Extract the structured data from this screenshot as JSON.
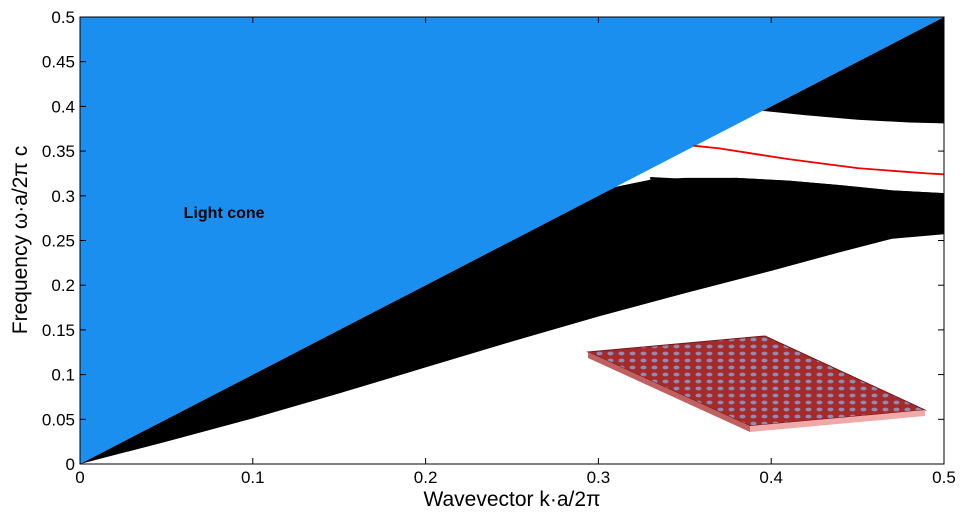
{
  "chart_data": {
    "type": "area",
    "xlabel": "Wavevector k·a/2π",
    "ylabel": "Frequency ω·a/2π c",
    "xlim": [
      0,
      0.5
    ],
    "ylim": [
      0,
      0.5
    ],
    "grid": false,
    "xticks": [
      "0",
      "0.1",
      "0.2",
      "0.3",
      "0.4",
      "0.5"
    ],
    "yticks": [
      "0",
      "0.05",
      "0.1",
      "0.15",
      "0.2",
      "0.25",
      "0.3",
      "0.35",
      "0.4",
      "0.45",
      "0.5"
    ],
    "colors": {
      "light_cone": "#1a8fef",
      "bands": "#000000",
      "guided_mode": "#ee0000"
    },
    "annotations": [
      {
        "text": "Light cone",
        "x": 0.06,
        "y": 0.275
      }
    ],
    "light_cone": {
      "x": [
        0,
        0.5
      ],
      "y": [
        0,
        0.5
      ]
    },
    "lower_band": {
      "top": {
        "x": [
          0,
          0.1,
          0.2,
          0.3,
          0.31,
          0.33,
          0.35,
          0.38,
          0.41,
          0.44,
          0.47,
          0.5
        ],
        "y": [
          0,
          0.1,
          0.2,
          0.3,
          0.31,
          0.318,
          0.32,
          0.32,
          0.317,
          0.312,
          0.306,
          0.303
        ]
      },
      "bottom": {
        "x": [
          0,
          0.05,
          0.1,
          0.15,
          0.2,
          0.25,
          0.3,
          0.35,
          0.4,
          0.44,
          0.47,
          0.5
        ],
        "y": [
          0,
          0.025,
          0.051,
          0.079,
          0.108,
          0.137,
          0.165,
          0.191,
          0.216,
          0.237,
          0.252,
          0.257
        ]
      }
    },
    "middle_band_edge": {
      "x": [
        0.33,
        0.36,
        0.39,
        0.42,
        0.45,
        0.48,
        0.5
      ],
      "y": [
        0.321,
        0.318,
        0.311,
        0.3,
        0.294,
        0.289,
        0.288
      ]
    },
    "upper_band": {
      "bottom": {
        "x": [
          0.395,
          0.42,
          0.45,
          0.48,
          0.5
        ],
        "y": [
          0.395,
          0.39,
          0.385,
          0.382,
          0.381
        ]
      }
    },
    "series": [
      {
        "x": [
          0.355,
          0.37,
          0.39,
          0.41,
          0.43,
          0.45,
          0.47,
          0.49,
          0.5
        ],
        "y": [
          0.356,
          0.353,
          0.347,
          0.341,
          0.336,
          0.331,
          0.328,
          0.325,
          0.324
        ]
      }
    ]
  },
  "inset": {
    "icon": "photonic-crystal-slab-icon",
    "colors": {
      "top": "#a52a2a",
      "side": "#f0a8a8",
      "holes": "#8b97c6"
    }
  }
}
